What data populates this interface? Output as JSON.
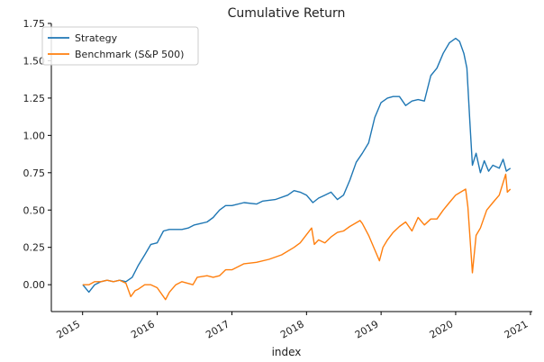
{
  "chart_data": {
    "type": "line",
    "title": "Cumulative Return",
    "xlabel": "index",
    "ylabel": "",
    "xlim": [
      "2014-08-01",
      "2021-01-10"
    ],
    "ylim": [
      -0.18,
      1.75
    ],
    "x_ticks": [
      "2015",
      "2016",
      "2017",
      "2018",
      "2019",
      "2020",
      "2021"
    ],
    "y_ticks": [
      "0.00",
      "0.25",
      "0.50",
      "0.75",
      "1.00",
      "1.25",
      "1.50",
      "1.75"
    ],
    "y_tick_values": [
      0,
      0.25,
      0.5,
      0.75,
      1.0,
      1.25,
      1.5,
      1.75
    ],
    "legend_position": "top-left",
    "grid": false,
    "series": [
      {
        "name": "Strategy",
        "color": "#1f77b4",
        "points": [
          [
            "2015-01-02",
            0.0
          ],
          [
            "2015-02-01",
            -0.05
          ],
          [
            "2015-03-01",
            0.0
          ],
          [
            "2015-04-01",
            0.02
          ],
          [
            "2015-05-01",
            0.03
          ],
          [
            "2015-06-01",
            0.02
          ],
          [
            "2015-07-01",
            0.03
          ],
          [
            "2015-08-01",
            0.02
          ],
          [
            "2015-09-01",
            0.05
          ],
          [
            "2015-10-01",
            0.13
          ],
          [
            "2015-11-01",
            0.2
          ],
          [
            "2015-12-01",
            0.27
          ],
          [
            "2016-01-01",
            0.28
          ],
          [
            "2016-02-01",
            0.36
          ],
          [
            "2016-03-01",
            0.37
          ],
          [
            "2016-04-01",
            0.37
          ],
          [
            "2016-05-01",
            0.37
          ],
          [
            "2016-06-01",
            0.38
          ],
          [
            "2016-07-01",
            0.4
          ],
          [
            "2016-08-01",
            0.41
          ],
          [
            "2016-09-01",
            0.42
          ],
          [
            "2016-10-01",
            0.45
          ],
          [
            "2016-11-01",
            0.5
          ],
          [
            "2016-12-01",
            0.53
          ],
          [
            "2017-01-01",
            0.53
          ],
          [
            "2017-03-01",
            0.55
          ],
          [
            "2017-05-01",
            0.54
          ],
          [
            "2017-06-01",
            0.56
          ],
          [
            "2017-08-01",
            0.57
          ],
          [
            "2017-10-01",
            0.6
          ],
          [
            "2017-11-01",
            0.63
          ],
          [
            "2017-12-01",
            0.62
          ],
          [
            "2018-01-01",
            0.6
          ],
          [
            "2018-02-01",
            0.55
          ],
          [
            "2018-03-01",
            0.58
          ],
          [
            "2018-04-01",
            0.6
          ],
          [
            "2018-05-01",
            0.62
          ],
          [
            "2018-06-01",
            0.57
          ],
          [
            "2018-07-01",
            0.6
          ],
          [
            "2018-08-01",
            0.7
          ],
          [
            "2018-09-01",
            0.82
          ],
          [
            "2018-10-01",
            0.88
          ],
          [
            "2018-11-01",
            0.95
          ],
          [
            "2018-12-01",
            1.12
          ],
          [
            "2019-01-01",
            1.22
          ],
          [
            "2019-02-01",
            1.25
          ],
          [
            "2019-03-01",
            1.26
          ],
          [
            "2019-04-01",
            1.26
          ],
          [
            "2019-05-01",
            1.2
          ],
          [
            "2019-06-01",
            1.23
          ],
          [
            "2019-07-01",
            1.24
          ],
          [
            "2019-08-01",
            1.23
          ],
          [
            "2019-09-01",
            1.4
          ],
          [
            "2019-10-01",
            1.45
          ],
          [
            "2019-11-01",
            1.55
          ],
          [
            "2019-12-01",
            1.62
          ],
          [
            "2020-01-01",
            1.65
          ],
          [
            "2020-01-20",
            1.63
          ],
          [
            "2020-02-10",
            1.55
          ],
          [
            "2020-02-25",
            1.45
          ],
          [
            "2020-03-10",
            1.1
          ],
          [
            "2020-03-23",
            0.8
          ],
          [
            "2020-04-10",
            0.88
          ],
          [
            "2020-05-01",
            0.75
          ],
          [
            "2020-05-20",
            0.83
          ],
          [
            "2020-06-10",
            0.76
          ],
          [
            "2020-07-01",
            0.8
          ],
          [
            "2020-08-01",
            0.78
          ],
          [
            "2020-08-20",
            0.84
          ],
          [
            "2020-09-05",
            0.76
          ],
          [
            "2020-09-25",
            0.78
          ]
        ]
      },
      {
        "name": "Benchmark (S&P 500)",
        "color": "#ff7f0e",
        "points": [
          [
            "2015-01-02",
            0.0
          ],
          [
            "2015-02-01",
            0.0
          ],
          [
            "2015-03-01",
            0.02
          ],
          [
            "2015-04-01",
            0.02
          ],
          [
            "2015-05-01",
            0.03
          ],
          [
            "2015-06-01",
            0.02
          ],
          [
            "2015-07-01",
            0.03
          ],
          [
            "2015-08-01",
            0.01
          ],
          [
            "2015-08-25",
            -0.08
          ],
          [
            "2015-09-15",
            -0.04
          ],
          [
            "2015-10-01",
            -0.03
          ],
          [
            "2015-11-01",
            0.0
          ],
          [
            "2015-12-01",
            0.0
          ],
          [
            "2016-01-01",
            -0.02
          ],
          [
            "2016-02-11",
            -0.1
          ],
          [
            "2016-03-01",
            -0.05
          ],
          [
            "2016-04-01",
            0.0
          ],
          [
            "2016-05-01",
            0.02
          ],
          [
            "2016-06-24",
            0.0
          ],
          [
            "2016-07-15",
            0.05
          ],
          [
            "2016-09-01",
            0.06
          ],
          [
            "2016-10-01",
            0.05
          ],
          [
            "2016-11-01",
            0.06
          ],
          [
            "2016-12-01",
            0.1
          ],
          [
            "2017-01-01",
            0.1
          ],
          [
            "2017-03-01",
            0.14
          ],
          [
            "2017-05-01",
            0.15
          ],
          [
            "2017-07-01",
            0.17
          ],
          [
            "2017-09-01",
            0.2
          ],
          [
            "2017-11-01",
            0.25
          ],
          [
            "2017-12-01",
            0.28
          ],
          [
            "2018-01-26",
            0.38
          ],
          [
            "2018-02-08",
            0.27
          ],
          [
            "2018-03-01",
            0.3
          ],
          [
            "2018-04-01",
            0.28
          ],
          [
            "2018-05-01",
            0.32
          ],
          [
            "2018-06-01",
            0.35
          ],
          [
            "2018-07-01",
            0.36
          ],
          [
            "2018-08-01",
            0.39
          ],
          [
            "2018-09-20",
            0.43
          ],
          [
            "2018-10-01",
            0.41
          ],
          [
            "2018-11-01",
            0.33
          ],
          [
            "2018-12-24",
            0.16
          ],
          [
            "2019-01-10",
            0.25
          ],
          [
            "2019-02-01",
            0.3
          ],
          [
            "2019-03-01",
            0.35
          ],
          [
            "2019-04-01",
            0.39
          ],
          [
            "2019-05-01",
            0.42
          ],
          [
            "2019-06-01",
            0.36
          ],
          [
            "2019-07-01",
            0.45
          ],
          [
            "2019-08-01",
            0.4
          ],
          [
            "2019-09-01",
            0.44
          ],
          [
            "2019-10-01",
            0.44
          ],
          [
            "2019-11-01",
            0.5
          ],
          [
            "2019-12-01",
            0.55
          ],
          [
            "2020-01-01",
            0.6
          ],
          [
            "2020-02-19",
            0.64
          ],
          [
            "2020-03-01",
            0.52
          ],
          [
            "2020-03-12",
            0.3
          ],
          [
            "2020-03-23",
            0.08
          ],
          [
            "2020-04-10",
            0.33
          ],
          [
            "2020-05-01",
            0.38
          ],
          [
            "2020-06-01",
            0.5
          ],
          [
            "2020-07-01",
            0.55
          ],
          [
            "2020-08-01",
            0.6
          ],
          [
            "2020-09-02",
            0.74
          ],
          [
            "2020-09-10",
            0.62
          ],
          [
            "2020-09-25",
            0.64
          ]
        ]
      }
    ]
  }
}
